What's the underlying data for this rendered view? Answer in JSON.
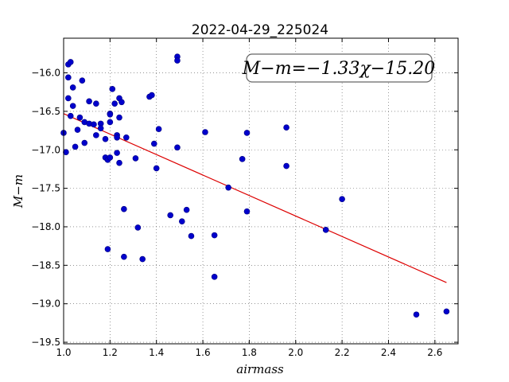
{
  "chart_data": {
    "type": "scatter",
    "title": "2022-04-29_225024",
    "xlabel": "airmass",
    "ylabel": "M−m",
    "xlim": [
      1.0,
      2.7
    ],
    "ylim": [
      -15.55,
      -19.52
    ],
    "x_ticks": [
      1.0,
      1.2,
      1.4,
      1.6,
      1.8,
      2.0,
      2.2,
      2.4,
      2.6
    ],
    "x_tick_labels": [
      "1.0",
      "1.2",
      "1.4",
      "1.6",
      "1.8",
      "2.0",
      "2.2",
      "2.4",
      "2.6"
    ],
    "y_ticks": [
      -16.0,
      -16.5,
      -17.0,
      -17.5,
      -18.0,
      -18.5,
      -19.0,
      -19.5
    ],
    "y_tick_labels": [
      "−16.0",
      "−16.5",
      "−17.0",
      "−17.5",
      "−18.0",
      "−18.5",
      "−19.0",
      "−19.5"
    ],
    "grid": true,
    "point_color": "#0000cc",
    "line_color": "#dd0000",
    "annotation": "M−m=−1.33χ−15.20",
    "fit": {
      "slope": -1.33,
      "intercept": -15.2,
      "x_range": [
        1.0,
        2.65
      ]
    },
    "points": [
      [
        1.0,
        -16.78
      ],
      [
        1.01,
        -17.03
      ],
      [
        1.02,
        -15.89
      ],
      [
        1.03,
        -15.86
      ],
      [
        1.02,
        -16.06
      ],
      [
        1.02,
        -16.33
      ],
      [
        1.03,
        -16.56
      ],
      [
        1.04,
        -16.19
      ],
      [
        1.04,
        -16.43
      ],
      [
        1.05,
        -16.96
      ],
      [
        1.06,
        -16.74
      ],
      [
        1.07,
        -16.58
      ],
      [
        1.08,
        -16.1
      ],
      [
        1.09,
        -16.64
      ],
      [
        1.09,
        -16.91
      ],
      [
        1.11,
        -16.37
      ],
      [
        1.11,
        -16.66
      ],
      [
        1.13,
        -16.67
      ],
      [
        1.14,
        -16.4
      ],
      [
        1.14,
        -16.81
      ],
      [
        1.16,
        -16.66
      ],
      [
        1.16,
        -16.72
      ],
      [
        1.18,
        -16.86
      ],
      [
        1.18,
        -17.1
      ],
      [
        1.19,
        -17.13
      ],
      [
        1.19,
        -18.29
      ],
      [
        1.2,
        -16.53
      ],
      [
        1.2,
        -16.54
      ],
      [
        1.2,
        -16.64
      ],
      [
        1.2,
        -17.1
      ],
      [
        1.21,
        -16.21
      ],
      [
        1.22,
        -16.4
      ],
      [
        1.23,
        -16.81
      ],
      [
        1.23,
        -16.84
      ],
      [
        1.23,
        -17.04
      ],
      [
        1.24,
        -16.33
      ],
      [
        1.24,
        -16.58
      ],
      [
        1.24,
        -17.17
      ],
      [
        1.25,
        -16.38
      ],
      [
        1.26,
        -17.77
      ],
      [
        1.26,
        -18.39
      ],
      [
        1.27,
        -16.84
      ],
      [
        1.31,
        -17.11
      ],
      [
        1.32,
        -18.01
      ],
      [
        1.34,
        -18.42
      ],
      [
        1.37,
        -16.31
      ],
      [
        1.38,
        -16.29
      ],
      [
        1.39,
        -16.92
      ],
      [
        1.4,
        -17.24
      ],
      [
        1.41,
        -16.73
      ],
      [
        1.46,
        -17.85
      ],
      [
        1.49,
        -15.79
      ],
      [
        1.49,
        -15.84
      ],
      [
        1.49,
        -16.97
      ],
      [
        1.51,
        -17.93
      ],
      [
        1.53,
        -17.78
      ],
      [
        1.55,
        -18.12
      ],
      [
        1.61,
        -16.77
      ],
      [
        1.65,
        -18.11
      ],
      [
        1.65,
        -18.65
      ],
      [
        1.71,
        -17.49
      ],
      [
        1.77,
        -17.12
      ],
      [
        1.79,
        -16.78
      ],
      [
        1.79,
        -17.8
      ],
      [
        1.96,
        -16.71
      ],
      [
        1.96,
        -17.21
      ],
      [
        2.13,
        -18.04
      ],
      [
        2.2,
        -17.64
      ],
      [
        2.52,
        -19.14
      ],
      [
        2.65,
        -19.1
      ]
    ]
  }
}
